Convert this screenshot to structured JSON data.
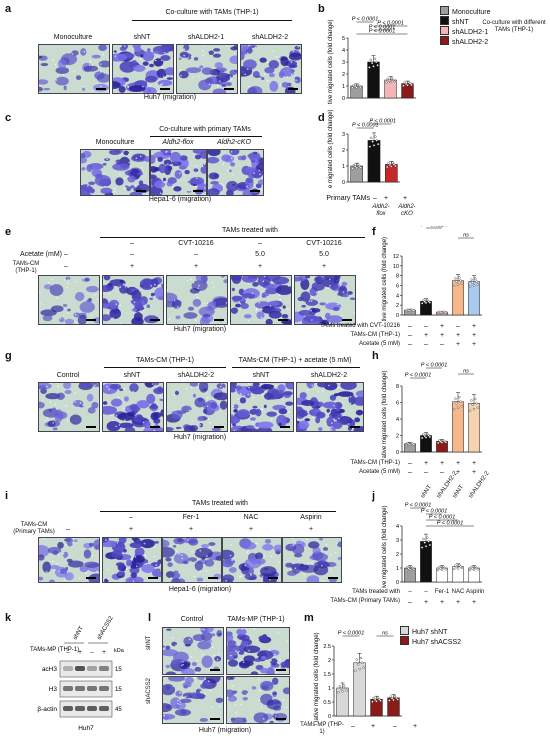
{
  "panels": {
    "a": {
      "label": "a",
      "header": "Co-culture with TAMs (THP-1)",
      "images": [
        "Monoculture",
        "shNT",
        "shALDH2-1",
        "shALDH2-2"
      ],
      "caption": "Huh7 (migration)"
    },
    "b": {
      "label": "b",
      "ylabel": "Relative migrated cells (fold change)",
      "pvals": [
        "P < 0.0001",
        "P < 0.0001",
        "P < 0.0001",
        "P < 0.0001"
      ],
      "legend": [
        "Monoculture",
        "shNT",
        "shALDH2-1",
        "shALDH2-2"
      ],
      "legend_note": "Co-culture with different TAMs  (THP-1)"
    },
    "c": {
      "label": "c",
      "header": "Co-culture with primary TAMs",
      "images": [
        "Monoculture",
        "Aldh2-flox",
        "Aldh2-cKO"
      ],
      "caption": "Hepa1-6 (migration)"
    },
    "d": {
      "label": "d",
      "ylabel": "Relative migrated cells (fold change)",
      "pvals": [
        "P < 0.0001",
        "P < 0.0001"
      ],
      "row_label": "Primary TAMs",
      "row_signs": [
        "–",
        "+",
        "+"
      ],
      "xlabels": [
        "Aldh2-flox",
        "Aldh2-cKO"
      ]
    },
    "e": {
      "label": "e",
      "header": "TAMs treated with",
      "col_heads": [
        "–",
        "CVT-10216",
        "–",
        "CVT-10216"
      ],
      "acetate_label": "Acetate (mM)",
      "acetate_vals": [
        "–",
        "–",
        "5.0",
        "5.0"
      ],
      "acetate_first": "–",
      "tams_label": "TAMs-CM (THP-1)",
      "tams_vals": [
        "–",
        "+",
        "+",
        "+",
        "+"
      ],
      "caption": "Huh7 (migration)"
    },
    "f": {
      "label": "f",
      "ylabel": "Relative migrated cells (fold change)",
      "pvals": [
        "P = 0.0242",
        "P = 0.0214",
        "ns"
      ],
      "rows": [
        {
          "label": "TAMs treated with CVT-10216",
          "signs": [
            "–",
            "–",
            "+",
            "–",
            "+"
          ]
        },
        {
          "label": "TAMs-CM (THP-1)",
          "signs": [
            "–",
            "+",
            "+",
            "+",
            "+"
          ]
        },
        {
          "label": "Acetate (5 mM)",
          "signs": [
            "–",
            "–",
            "–",
            "+",
            "+"
          ]
        }
      ]
    },
    "g": {
      "label": "g",
      "header1": "TAMs-CM (THP-1)",
      "header2": "TAMs-CM (THP-1) + acetate (5 mM)",
      "images": [
        "Control",
        "shNT",
        "shALDH2-2",
        "shNT",
        "shALDH2-2"
      ],
      "caption": "Huh7 (migration)"
    },
    "h": {
      "label": "h",
      "ylabel": "Relative migrated cells (fold change)",
      "pvals": [
        "ns",
        "P < 0.0001",
        "P < 0.0001"
      ],
      "rows": [
        {
          "label": "TAMs-CM (THP-1)",
          "signs": [
            "–",
            "+",
            "+",
            "+",
            "+"
          ]
        },
        {
          "label": "Acetate (5 mM)",
          "signs": [
            "–",
            "–",
            "–",
            "+",
            "+"
          ]
        }
      ],
      "xlabels": [
        "shNT",
        "shALDH2-2",
        "shNT",
        "shALDH2-2"
      ]
    },
    "i": {
      "label": "i",
      "header": "TAMs treated with",
      "col_heads": [
        "–",
        "Fer-1",
        "NAC",
        "Aspirin"
      ],
      "tams_label": "TAMs-CM (Primary TAMs)",
      "tams_vals": [
        "–",
        "+",
        "+",
        "+",
        "+"
      ],
      "caption": "Hepa1-6 (migration)"
    },
    "j": {
      "label": "j",
      "ylabel": "Relative migrated cells (fold change)",
      "pvals": [
        "P < 0.0001",
        "P < 0.0001",
        "P < 0.0001",
        "P < 0.0001"
      ],
      "row1_label": "TAMs treated with",
      "row1_vals": [
        "–",
        "–",
        "Fer-1",
        "NAC",
        "Aspirin"
      ],
      "row2_label": "TAMs-CM (Primary TAMs)",
      "row2_signs": [
        "–",
        "+",
        "+",
        "+",
        "+"
      ]
    },
    "k": {
      "label": "k",
      "lane_heads": [
        "shNT",
        "shACSS2"
      ],
      "tams_label": "TAMs-MP (THP-1)",
      "tams_signs": [
        "–",
        "+",
        "–",
        "+"
      ],
      "kda": "kDa",
      "bands": [
        {
          "name": "acH3",
          "kda": "15"
        },
        {
          "name": "H3",
          "kda": "15"
        },
        {
          "name": "β-actin",
          "kda": "45"
        }
      ],
      "caption": "Huh7"
    },
    "l": {
      "label": "l",
      "col_heads": [
        "Control",
        "TAMs-MP (THP-1)"
      ],
      "row_heads": [
        "shNT",
        "shACSS2"
      ],
      "caption": "Huh7 (migration)"
    },
    "m": {
      "label": "m",
      "ylabel": "Relative migrated cells (fold change)",
      "pvals": [
        "P < 0.0001",
        "ns"
      ],
      "legend": [
        "Huh7 shNT",
        "Huh7 shACSS2"
      ],
      "tams_label": "TAMs-MP (THP-1)",
      "tams_signs": [
        "–",
        "+",
        "–",
        "+"
      ]
    }
  },
  "chart_data": [
    {
      "panel": "b",
      "type": "bar",
      "categories": [
        "Monoculture",
        "shNT",
        "shALDH2-1",
        "shALDH2-2"
      ],
      "values": [
        1.0,
        3.0,
        1.5,
        1.2
      ],
      "colors": [
        "#9e9e9e",
        "#111111",
        "#f2b6b6",
        "#8b1a1a"
      ],
      "ylim": [
        0,
        5
      ],
      "yticks": [
        0,
        1,
        2,
        3,
        4,
        5
      ]
    },
    {
      "panel": "d",
      "type": "bar",
      "categories": [
        "Monoculture",
        "Aldh2-flox",
        "Aldh2-cKO"
      ],
      "values": [
        1.0,
        2.6,
        1.1
      ],
      "colors": [
        "#9e9e9e",
        "#111111",
        "#c62828"
      ],
      "ylim": [
        0,
        3
      ],
      "yticks": [
        0,
        1,
        2,
        3
      ]
    },
    {
      "panel": "f",
      "type": "bar",
      "categories": [
        "1",
        "2",
        "3",
        "4",
        "5"
      ],
      "values": [
        1.0,
        2.8,
        0.6,
        7.0,
        6.8
      ],
      "colors": [
        "#9e9e9e",
        "#111111",
        "#c9a0a0",
        "#f6b78b",
        "#a9c9ee"
      ],
      "ylim": [
        0,
        12
      ],
      "yticks": [
        0,
        2,
        4,
        6,
        8,
        10,
        12
      ]
    },
    {
      "panel": "h",
      "type": "bar",
      "categories": [
        "1",
        "2",
        "3",
        "4",
        "5"
      ],
      "values": [
        1.0,
        2.0,
        1.3,
        6.1,
        5.9
      ],
      "colors": [
        "#9e9e9e",
        "#111111",
        "#8b1a1a",
        "#f6b78b",
        "#f3d3b0"
      ],
      "ylim": [
        0,
        8
      ],
      "yticks": [
        0,
        2,
        4,
        6,
        8
      ]
    },
    {
      "panel": "j",
      "type": "bar",
      "categories": [
        "1",
        "2",
        "3",
        "4",
        "5"
      ],
      "values": [
        1.0,
        2.9,
        1.0,
        1.1,
        1.0
      ],
      "colors": [
        "#9e9e9e",
        "#111111",
        "#ffffff",
        "#ffffff",
        "#ffffff"
      ],
      "ylim": [
        0,
        4
      ],
      "yticks": [
        0,
        1,
        2,
        3,
        4
      ]
    },
    {
      "panel": "m",
      "type": "bar",
      "categories": [
        "1",
        "2",
        "3",
        "4"
      ],
      "values": [
        1.0,
        1.9,
        0.6,
        0.65
      ],
      "colors": [
        "#d8d8d8",
        "#d8d8d8",
        "#8b1a1a",
        "#8b1a1a"
      ],
      "ylim": [
        0,
        2.5
      ],
      "yticks": [
        0,
        0.5,
        1.0,
        1.5,
        2.0,
        2.5
      ]
    }
  ]
}
